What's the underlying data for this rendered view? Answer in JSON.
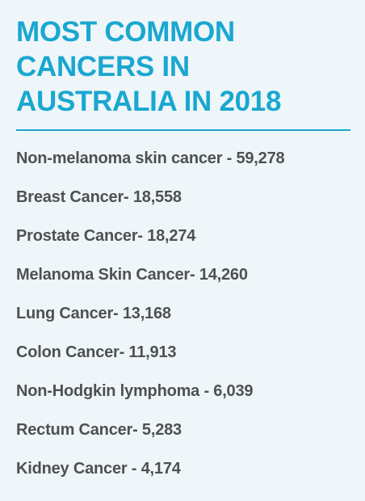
{
  "header": {
    "title_lines": [
      "MOST COMMON",
      "CANCERS IN",
      "AUSTRALIA IN 2018"
    ]
  },
  "list": {
    "items": [
      "Non-melanoma skin cancer - 59,278",
      "Breast Cancer- 18,558",
      "Prostate Cancer- 18,274",
      "Melanoma Skin Cancer- 14,260",
      "Lung Cancer- 13,168",
      "Colon Cancer- 11,913",
      "Non-Hodgkin lymphoma - 6,039",
      "Rectum Cancer- 5,283",
      "Kidney Cancer - 4,174"
    ]
  },
  "colors": {
    "background": "#eef6fa",
    "accent": "#1aa7d0",
    "text": "#505050"
  }
}
